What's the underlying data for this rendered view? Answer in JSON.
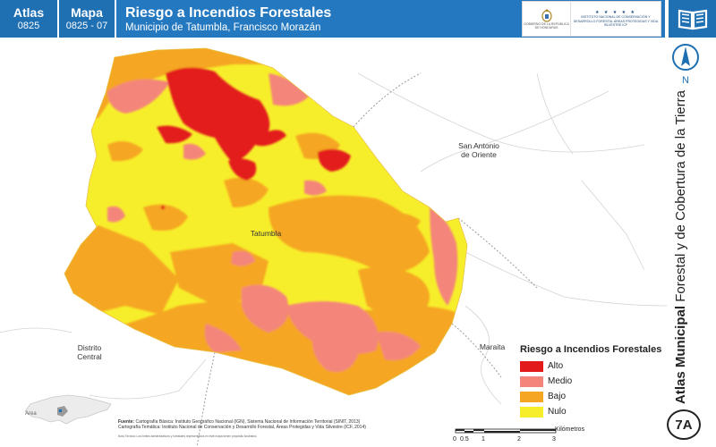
{
  "header": {
    "atlas_label": "Atlas",
    "atlas_code": "0825",
    "mapa_label": "Mapa",
    "mapa_code": "0825 - 07",
    "title": "Riesgo a Incendios Forestales",
    "subtitle": "Municipio de Tatumbla, Francisco Morazán",
    "logo_gov_text": "GOBIERNO DE LA REPÚBLICA DE HONDURAS",
    "logo_icf_stars": "★ ★ ★ ★ ★",
    "logo_icf_text": "INSTITUTO NACIONAL DE CONSERVACIÓN Y DESARROLLO FORESTAL ÁREAS PROTEGIDAS Y VIDA SILVESTRE ICF"
  },
  "map": {
    "places": {
      "san_antonio": "San Antonio de Oriente",
      "tatumbla": "Tatumbla",
      "distrito_central": "Distrito Central",
      "maraita": "Maraita"
    },
    "colors": {
      "alto": "#e31a1c",
      "medio": "#f4857a",
      "bajo": "#f5a623",
      "nulo": "#f7ee2b"
    }
  },
  "side": {
    "north_label": "N",
    "vertical_title_bold": "Atlas Municipal",
    "vertical_title_rest": " Forestal y de Cobertura de la Tierra",
    "badge": "7A"
  },
  "legend": {
    "title": "Riesgo a Incendios Forestales",
    "items": [
      {
        "label": "Alto",
        "color": "#e31a1c"
      },
      {
        "label": "Medio",
        "color": "#f4857a"
      },
      {
        "label": "Bajo",
        "color": "#f5a623"
      },
      {
        "label": "Nulo",
        "color": "#f7ee2b"
      }
    ]
  },
  "footer": {
    "fuente_label": "Fuente:",
    "fuente_line1": "Cartografía Básica: Instituto Geográfico Nacional (IGN), Sistema Nacional de Información Territorial (SINIT, 2013)",
    "fuente_line2": "Cartografía Temática: Instituto Nacional de Conservación y Desarrollo Forestal, Áreas Protegidas y Vida Silvestre (ICF, 2014)",
    "nota": "Nota Técnica: Los límites administrativos y forestales representados en este mapa tienen propósito ilustrativo.",
    "inset_label": "Area",
    "scale_unit": "Kilómetros",
    "scale_ticks": [
      "0",
      "0.5",
      "1",
      "2",
      "3"
    ]
  }
}
